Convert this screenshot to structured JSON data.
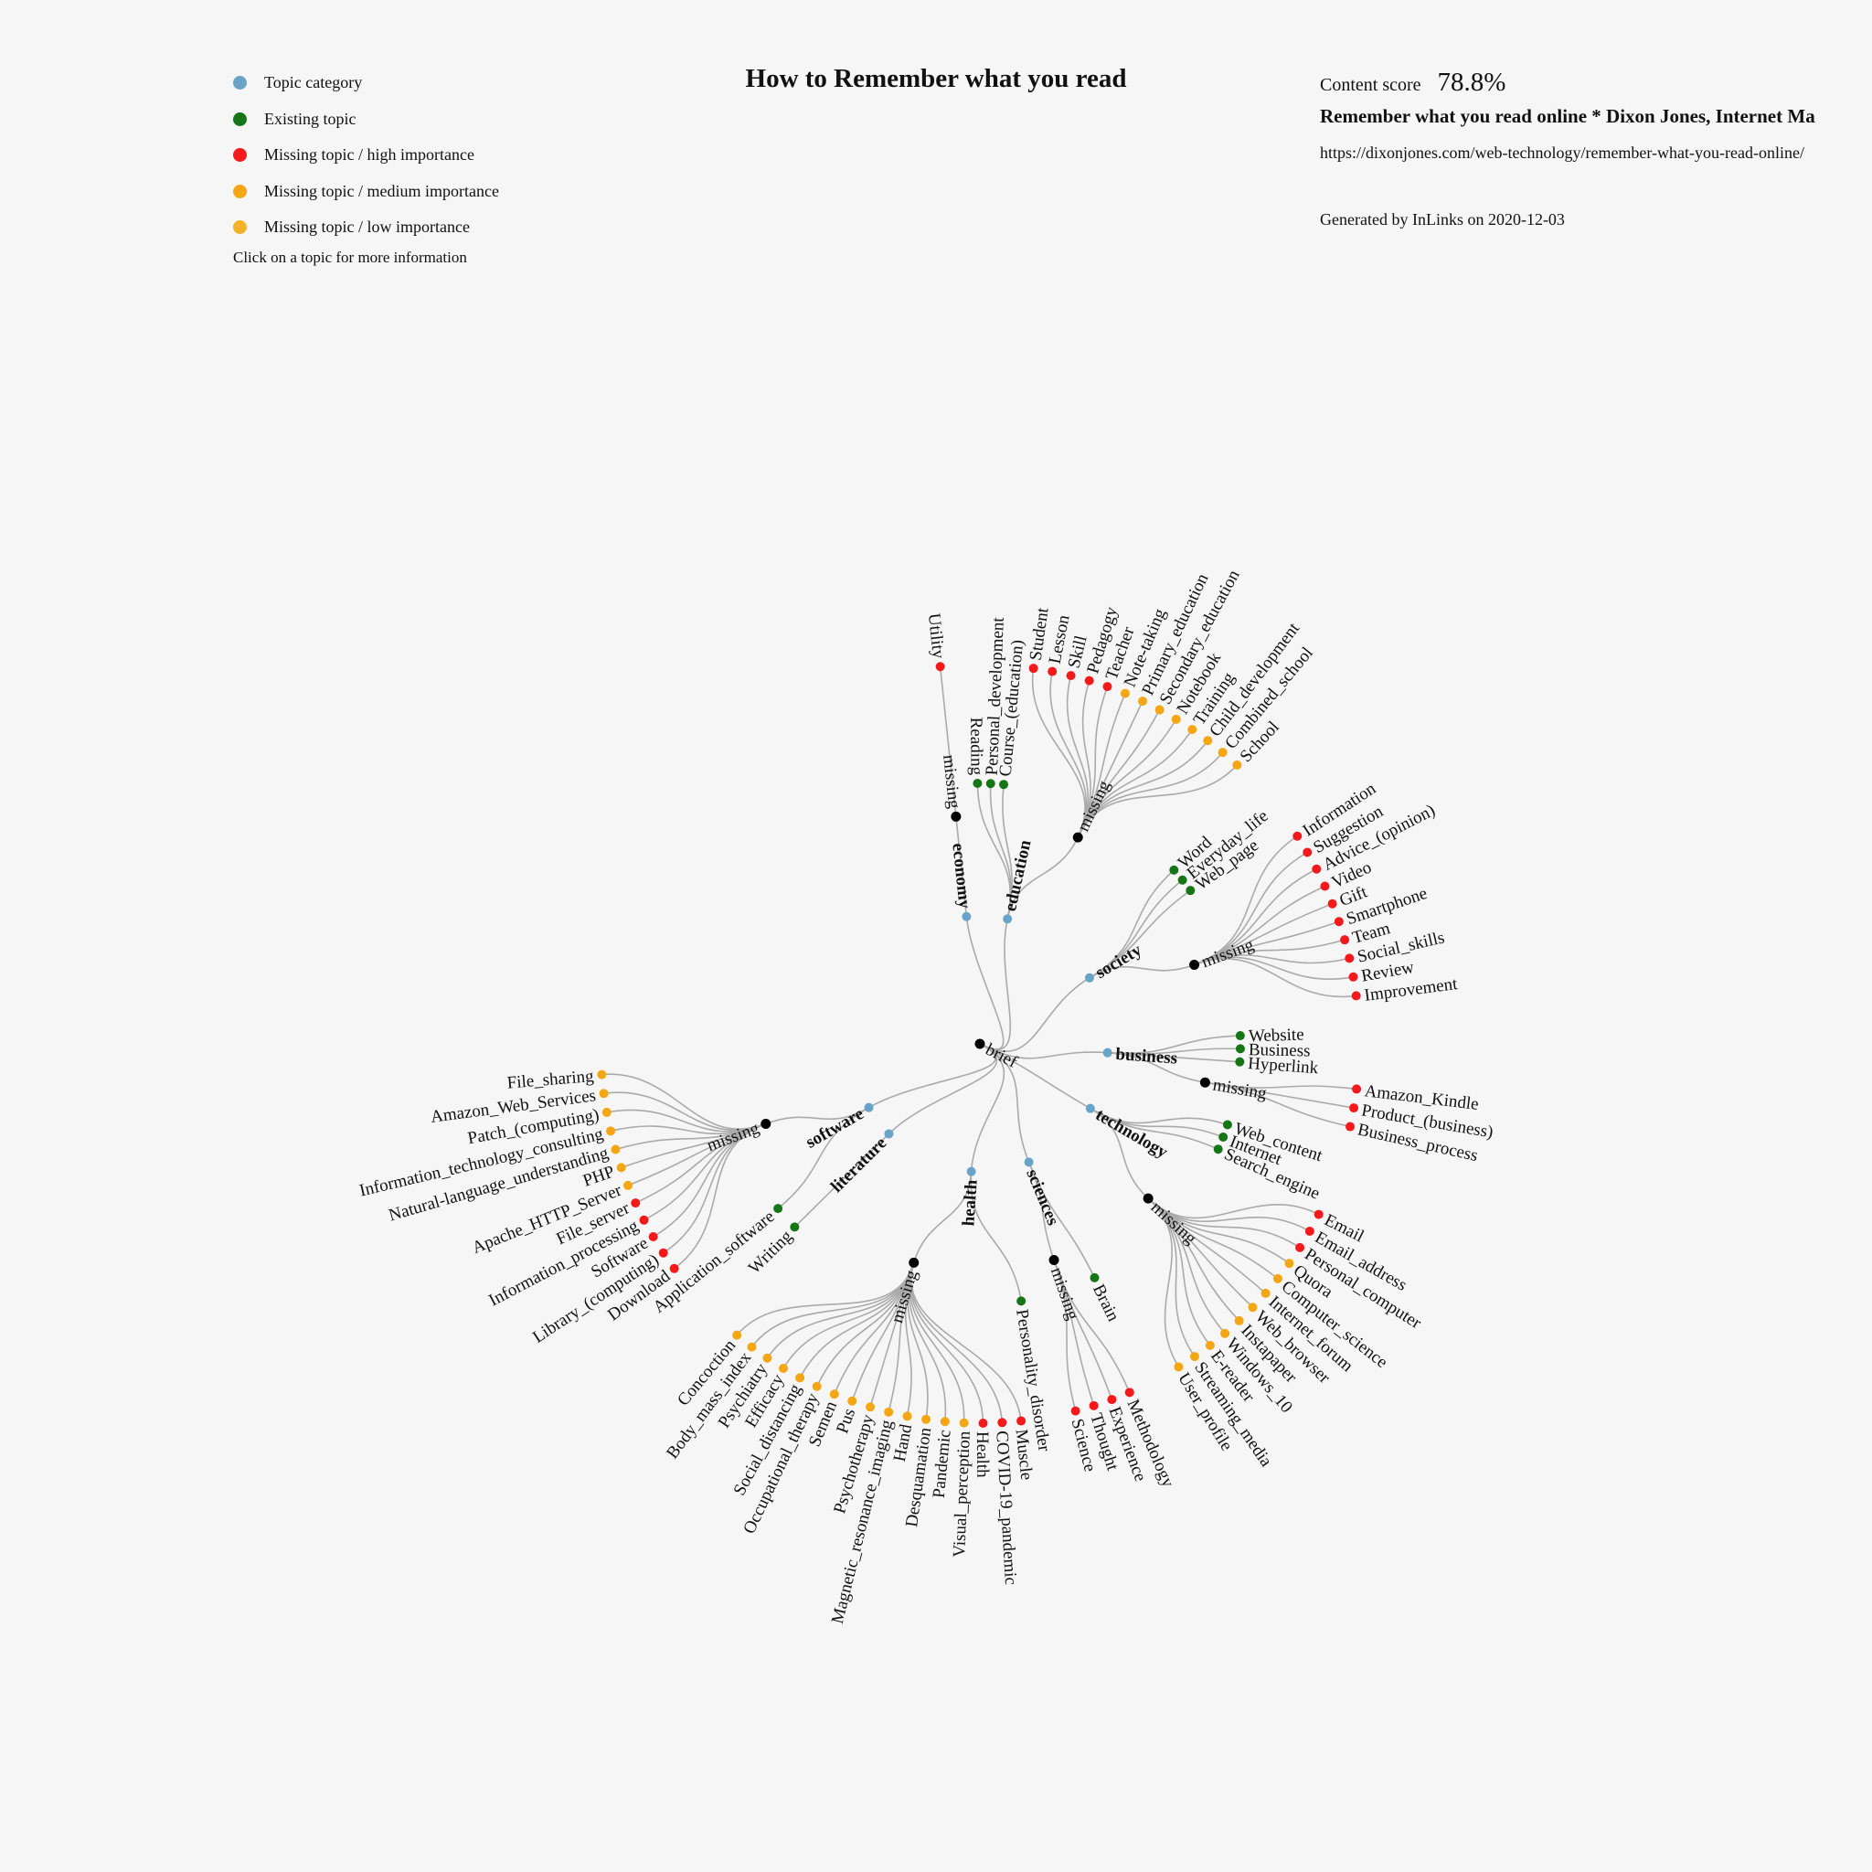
{
  "title": "How to Remember what you read",
  "legend": {
    "items": [
      {
        "label": "Topic category",
        "color": "#6aa3c8"
      },
      {
        "label": "Existing topic",
        "color": "#167516"
      },
      {
        "label": "Missing topic / high importance",
        "color": "#f5191c"
      },
      {
        "label": "Missing topic / medium importance",
        "color": "#f5a614"
      },
      {
        "label": "Missing topic / low importance",
        "color": "#f5b227"
      }
    ],
    "note": "Click on a topic for more information"
  },
  "info": {
    "score_label": "Content score",
    "score_value": "78.8%",
    "page_title": "Remember what you read online * Dixon Jones, Internet Ma",
    "page_url": "https://dixonjones.com/web-technology/remember-what-you-read-online/",
    "generated": "Generated by InLinks on 2020-12-03"
  },
  "colors": {
    "category": "#6aa3c8",
    "existing": "#167516",
    "high": "#f5191c",
    "medium": "#f5a614",
    "root": "#000000",
    "link": "#aaaaaa"
  },
  "tree": {
    "name": "brief",
    "children": [
      {
        "name": "economy",
        "children": [
          {
            "name": "missing",
            "children": [
              {
                "name": "Utility",
                "status": "high"
              }
            ]
          }
        ]
      },
      {
        "name": "education",
        "children": [
          {
            "name": "Reading",
            "status": "existing"
          },
          {
            "name": "Personal_development",
            "status": "existing"
          },
          {
            "name": "Course_(education)",
            "status": "existing"
          },
          {
            "name": "missing",
            "children": [
              {
                "name": "Student",
                "status": "high"
              },
              {
                "name": "Lesson",
                "status": "high"
              },
              {
                "name": "Skill",
                "status": "high"
              },
              {
                "name": "Pedagogy",
                "status": "high"
              },
              {
                "name": "Teacher",
                "status": "high"
              },
              {
                "name": "Note-taking",
                "status": "medium"
              },
              {
                "name": "Primary_education",
                "status": "medium"
              },
              {
                "name": "Secondary_education",
                "status": "medium"
              },
              {
                "name": "Notebook",
                "status": "medium"
              },
              {
                "name": "Training",
                "status": "medium"
              },
              {
                "name": "Child_development",
                "status": "medium"
              },
              {
                "name": "Combined_school",
                "status": "medium"
              },
              {
                "name": "School",
                "status": "medium"
              }
            ]
          }
        ]
      },
      {
        "name": "society",
        "children": [
          {
            "name": "Word",
            "status": "existing"
          },
          {
            "name": "Everyday_life",
            "status": "existing"
          },
          {
            "name": "Web_page",
            "status": "existing"
          },
          {
            "name": "missing",
            "children": [
              {
                "name": "Information",
                "status": "high"
              },
              {
                "name": "Suggestion",
                "status": "high"
              },
              {
                "name": "Advice_(opinion)",
                "status": "high"
              },
              {
                "name": "Video",
                "status": "high"
              },
              {
                "name": "Gift",
                "status": "high"
              },
              {
                "name": "Smartphone",
                "status": "high"
              },
              {
                "name": "Team",
                "status": "high"
              },
              {
                "name": "Social_skills",
                "status": "high"
              },
              {
                "name": "Review",
                "status": "high"
              },
              {
                "name": "Improvement",
                "status": "high"
              }
            ]
          }
        ]
      },
      {
        "name": "business",
        "children": [
          {
            "name": "Website",
            "status": "existing"
          },
          {
            "name": "Business",
            "status": "existing"
          },
          {
            "name": "Hyperlink",
            "status": "existing"
          },
          {
            "name": "missing",
            "children": [
              {
                "name": "Amazon_Kindle",
                "status": "high"
              },
              {
                "name": "Product_(business)",
                "status": "high"
              },
              {
                "name": "Business_process",
                "status": "high"
              }
            ]
          }
        ]
      },
      {
        "name": "technology",
        "children": [
          {
            "name": "Web_content",
            "status": "existing"
          },
          {
            "name": "Internet",
            "status": "existing"
          },
          {
            "name": "Search_engine",
            "status": "existing"
          },
          {
            "name": "missing",
            "children": [
              {
                "name": "Email",
                "status": "high"
              },
              {
                "name": "Email_address",
                "status": "high"
              },
              {
                "name": "Personal_computer",
                "status": "high"
              },
              {
                "name": "Quora",
                "status": "medium"
              },
              {
                "name": "Computer_science",
                "status": "medium"
              },
              {
                "name": "Internet_forum",
                "status": "medium"
              },
              {
                "name": "Web_browser",
                "status": "medium"
              },
              {
                "name": "Instapaper",
                "status": "medium"
              },
              {
                "name": "Windows_10",
                "status": "medium"
              },
              {
                "name": "E-reader",
                "status": "medium"
              },
              {
                "name": "Streaming_media",
                "status": "medium"
              },
              {
                "name": "User_profile",
                "status": "medium"
              }
            ]
          }
        ]
      },
      {
        "name": "sciences",
        "children": [
          {
            "name": "Brain",
            "status": "existing"
          },
          {
            "name": "missing",
            "children": [
              {
                "name": "Methodology",
                "status": "high"
              },
              {
                "name": "Experience",
                "status": "high"
              },
              {
                "name": "Thought",
                "status": "high"
              },
              {
                "name": "Science",
                "status": "high"
              }
            ]
          }
        ]
      },
      {
        "name": "health",
        "children": [
          {
            "name": "Personality_disorder",
            "status": "existing"
          },
          {
            "name": "missing",
            "children": [
              {
                "name": "Muscle",
                "status": "high"
              },
              {
                "name": "COVID-19_pandemic",
                "status": "high"
              },
              {
                "name": "Health",
                "status": "high"
              },
              {
                "name": "Visual_perception",
                "status": "medium"
              },
              {
                "name": "Pandemic",
                "status": "medium"
              },
              {
                "name": "Desquamation",
                "status": "medium"
              },
              {
                "name": "Hand",
                "status": "medium"
              },
              {
                "name": "Magnetic_resonance_imaging",
                "status": "medium"
              },
              {
                "name": "Psychotherapy",
                "status": "medium"
              },
              {
                "name": "Pus",
                "status": "medium"
              },
              {
                "name": "Semen",
                "status": "medium"
              },
              {
                "name": "Occupational_therapy",
                "status": "medium"
              },
              {
                "name": "Social_distancing",
                "status": "medium"
              },
              {
                "name": "Efficacy",
                "status": "medium"
              },
              {
                "name": "Psychiatry",
                "status": "medium"
              },
              {
                "name": "Body_mass_index",
                "status": "medium"
              },
              {
                "name": "Concoction",
                "status": "medium"
              }
            ]
          }
        ]
      },
      {
        "name": "literature",
        "children": [
          {
            "name": "Writing",
            "status": "existing"
          }
        ]
      },
      {
        "name": "software",
        "children": [
          {
            "name": "Application_software",
            "status": "existing"
          },
          {
            "name": "missing",
            "children": [
              {
                "name": "Download",
                "status": "high"
              },
              {
                "name": "Library_(computing)",
                "status": "high"
              },
              {
                "name": "Software",
                "status": "high"
              },
              {
                "name": "Information_processing",
                "status": "high"
              },
              {
                "name": "File_server",
                "status": "high"
              },
              {
                "name": "Apache_HTTP_Server",
                "status": "medium"
              },
              {
                "name": "PHP",
                "status": "medium"
              },
              {
                "name": "Natural-language_understanding",
                "status": "medium"
              },
              {
                "name": "Information_technology_consulting",
                "status": "medium"
              },
              {
                "name": "Patch_(computing)",
                "status": "medium"
              },
              {
                "name": "Amazon_Web_Services",
                "status": "medium"
              },
              {
                "name": "File_sharing",
                "status": "medium"
              }
            ]
          }
        ]
      }
    ]
  }
}
